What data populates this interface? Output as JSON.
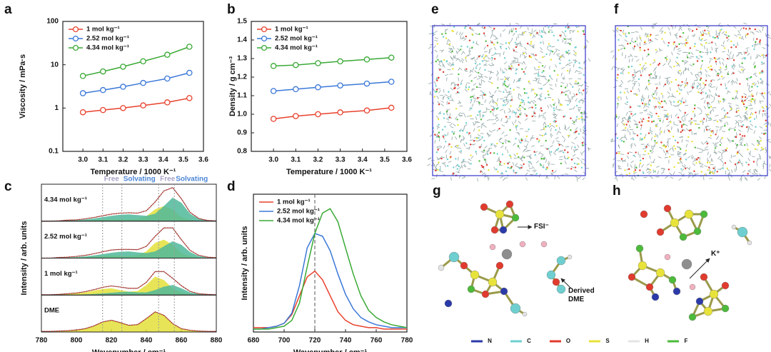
{
  "chart_data": [
    {
      "type": "line",
      "panel": "a",
      "xlabel": "Temperature / 1000 K⁻¹",
      "ylabel": "Viscosity / mPa·s",
      "x": [
        3.0,
        3.1,
        3.2,
        3.3,
        3.42,
        3.53
      ],
      "series": [
        {
          "name": "1 mol kg⁻¹",
          "color": "#e8412c",
          "values": [
            0.8,
            0.9,
            1.0,
            1.15,
            1.35,
            1.7
          ]
        },
        {
          "name": "2.52 mol kg⁻¹",
          "color": "#3b78d8",
          "values": [
            2.2,
            2.6,
            3.1,
            3.8,
            4.8,
            6.5
          ]
        },
        {
          "name": "4.34 mol kg⁻¹",
          "color": "#3aa935",
          "values": [
            5.5,
            7,
            9,
            12,
            17,
            26
          ]
        }
      ],
      "xlim": [
        2.9,
        3.6
      ],
      "xticks": [
        {
          "value": 3,
          "label": "3.0"
        },
        3.1,
        3.2,
        3.3,
        3.4,
        3.5,
        3.6
      ],
      "ylim": [
        0.1,
        100
      ],
      "yticks": [
        0.1,
        1,
        10,
        100
      ],
      "ylog": true,
      "markers": true,
      "legend": "upper left"
    },
    {
      "type": "line",
      "panel": "b",
      "xlabel": "Temperature / 1000 K⁻¹",
      "ylabel": "Density / g cm⁻³",
      "x": [
        3.0,
        3.1,
        3.2,
        3.3,
        3.42,
        3.53
      ],
      "series": [
        {
          "name": "1 mol kg⁻¹",
          "color": "#e8412c",
          "values": [
            0.975,
            0.99,
            1.0,
            1.01,
            1.02,
            1.035
          ]
        },
        {
          "name": "2.52 mol kg⁻¹",
          "color": "#3b78d8",
          "values": [
            1.125,
            1.135,
            1.145,
            1.155,
            1.165,
            1.175
          ]
        },
        {
          "name": "4.34 mol kg⁻¹",
          "color": "#3aa935",
          "values": [
            1.26,
            1.265,
            1.275,
            1.285,
            1.295,
            1.305
          ]
        }
      ],
      "xlim": [
        2.9,
        3.6
      ],
      "xticks": [
        {
          "value": 3,
          "label": "3.0"
        },
        3.1,
        3.2,
        3.3,
        3.4,
        3.5,
        3.6
      ],
      "ylim": [
        0.8,
        1.5
      ],
      "yticks": [
        0.8,
        0.9,
        {
          "value": 1,
          "label": "1.0"
        },
        1.1,
        1.2,
        1.3,
        1.4,
        1.5
      ],
      "ylog": false,
      "markers": true,
      "legend": "upper left"
    },
    {
      "type": "stacked_spectra",
      "panel": "c",
      "xlabel": "Wavenumber / cm⁻¹",
      "ylabel": "Intensity / arb. units",
      "x": [
        780,
        785,
        790,
        795,
        800,
        805,
        810,
        815,
        820,
        825,
        830,
        835,
        840,
        845,
        850,
        855,
        860,
        865,
        870,
        875,
        880
      ],
      "xlim": [
        780,
        880
      ],
      "xticks": [
        780,
        800,
        820,
        840,
        860,
        880
      ],
      "ylim": [
        0,
        1.1
      ],
      "reference_x": [
        815,
        826,
        847,
        856
      ],
      "annotations": [
        "Free",
        "Solvating",
        "Free",
        "Solvating"
      ],
      "free_color": "#e3e03a",
      "solvating_color": "#4fb89a",
      "total_color": "#d9463b",
      "panels": [
        {
          "label": "4.34 mol kg⁻¹",
          "free": [
            0,
            0,
            0,
            0.01,
            0.01,
            0.02,
            0.03,
            0.04,
            0.05,
            0.05,
            0.05,
            0.06,
            0.15,
            0.35,
            0.45,
            0.35,
            0.12,
            0.04,
            0.01,
            0,
            0
          ],
          "solvating": [
            0,
            0,
            0.01,
            0.02,
            0.03,
            0.05,
            0.08,
            0.12,
            0.16,
            0.19,
            0.2,
            0.18,
            0.16,
            0.22,
            0.45,
            0.7,
            0.55,
            0.22,
            0.07,
            0.02,
            0.01
          ],
          "total": [
            0,
            0,
            0.01,
            0.03,
            0.04,
            0.07,
            0.11,
            0.16,
            0.21,
            0.24,
            0.25,
            0.24,
            0.31,
            0.57,
            0.9,
            1.0,
            0.67,
            0.26,
            0.08,
            0.02,
            0.01
          ]
        },
        {
          "label": "2.52 mol kg⁻¹",
          "free": [
            0,
            0,
            0.01,
            0.01,
            0.02,
            0.03,
            0.05,
            0.07,
            0.08,
            0.07,
            0.06,
            0.08,
            0.2,
            0.45,
            0.55,
            0.4,
            0.15,
            0.05,
            0.02,
            0.01,
            0
          ],
          "solvating": [
            0,
            0,
            0.01,
            0.02,
            0.03,
            0.05,
            0.08,
            0.12,
            0.16,
            0.19,
            0.2,
            0.17,
            0.15,
            0.2,
            0.35,
            0.5,
            0.4,
            0.18,
            0.06,
            0.02,
            0.01
          ],
          "total": [
            0,
            0,
            0.02,
            0.03,
            0.05,
            0.08,
            0.13,
            0.19,
            0.24,
            0.26,
            0.26,
            0.25,
            0.35,
            0.65,
            0.9,
            0.9,
            0.55,
            0.23,
            0.08,
            0.03,
            0.01
          ]
        },
        {
          "label": "1 mol kg⁻¹",
          "free": [
            0.01,
            0.01,
            0.02,
            0.03,
            0.05,
            0.08,
            0.13,
            0.18,
            0.2,
            0.15,
            0.1,
            0.12,
            0.3,
            0.55,
            0.45,
            0.2,
            0.08,
            0.03,
            0.01,
            0.01,
            0.01
          ],
          "solvating": [
            0,
            0,
            0,
            0.01,
            0.01,
            0.02,
            0.03,
            0.05,
            0.07,
            0.09,
            0.1,
            0.08,
            0.08,
            0.15,
            0.25,
            0.3,
            0.2,
            0.08,
            0.03,
            0.01,
            0
          ],
          "total": [
            0.01,
            0.01,
            0.02,
            0.04,
            0.06,
            0.1,
            0.16,
            0.23,
            0.27,
            0.24,
            0.2,
            0.2,
            0.38,
            0.7,
            0.7,
            0.5,
            0.28,
            0.11,
            0.04,
            0.02,
            0.01
          ]
        },
        {
          "label": "DME",
          "free": [
            0.02,
            0.02,
            0.03,
            0.04,
            0.06,
            0.1,
            0.18,
            0.3,
            0.35,
            0.28,
            0.2,
            0.22,
            0.4,
            0.6,
            0.5,
            0.25,
            0.1,
            0.05,
            0.03,
            0.02,
            0.02
          ],
          "total": [
            0.02,
            0.02,
            0.03,
            0.04,
            0.06,
            0.1,
            0.18,
            0.3,
            0.35,
            0.28,
            0.2,
            0.22,
            0.4,
            0.6,
            0.5,
            0.25,
            0.1,
            0.05,
            0.03,
            0.02,
            0.02
          ]
        }
      ]
    },
    {
      "type": "line",
      "panel": "d",
      "xlabel": "Wavenumber / cm⁻¹",
      "ylabel": "Intensity / arb. units",
      "x": [
        680,
        685,
        690,
        695,
        700,
        705,
        710,
        715,
        720,
        725,
        730,
        735,
        740,
        745,
        750,
        755,
        760,
        765,
        770,
        775,
        780
      ],
      "series": [
        {
          "name": "1 mol kg⁻¹",
          "color": "#e8412c",
          "values": [
            0.03,
            0.03,
            0.03,
            0.04,
            0.06,
            0.12,
            0.25,
            0.38,
            0.42,
            0.36,
            0.25,
            0.14,
            0.08,
            0.05,
            0.04,
            0.03,
            0.03,
            0.02,
            0.02,
            0.02,
            0.02
          ]
        },
        {
          "name": "2.52 mol kg⁻¹",
          "color": "#3b78d8",
          "values": [
            0.02,
            0.02,
            0.03,
            0.04,
            0.06,
            0.13,
            0.32,
            0.58,
            0.68,
            0.66,
            0.56,
            0.4,
            0.26,
            0.16,
            0.1,
            0.07,
            0.05,
            0.04,
            0.03,
            0.03,
            0.03
          ]
        },
        {
          "name": "4.34 mol kg⁻¹",
          "color": "#3aa935",
          "values": [
            0.02,
            0.02,
            0.02,
            0.03,
            0.04,
            0.08,
            0.2,
            0.45,
            0.68,
            0.82,
            0.85,
            0.76,
            0.58,
            0.4,
            0.25,
            0.15,
            0.1,
            0.07,
            0.05,
            0.04,
            0.03
          ]
        }
      ],
      "xlim": [
        680,
        780
      ],
      "xticks": [
        680,
        700,
        720,
        740,
        760,
        780
      ],
      "ylim": [
        0,
        0.95
      ],
      "ylog": false,
      "markers": false,
      "reference_x": 720,
      "legend": "upper left"
    }
  ],
  "structures": {
    "panels": [
      {
        "label": "e"
      },
      {
        "label": "f"
      },
      {
        "label": "g",
        "annotations": [
          "FSI⁻",
          "Derived DME"
        ]
      },
      {
        "label": "h",
        "annotations": [
          "K⁺"
        ]
      }
    ],
    "legend": [
      {
        "name": "N",
        "color": "#2b3aa8"
      },
      {
        "name": "C",
        "color": "#6fcfd0"
      },
      {
        "name": "O",
        "color": "#e03b2e"
      },
      {
        "name": "S",
        "color": "#e8e33a"
      },
      {
        "name": "H",
        "color": "#e4e4e4"
      },
      {
        "name": "F",
        "color": "#4cba3a"
      }
    ]
  }
}
